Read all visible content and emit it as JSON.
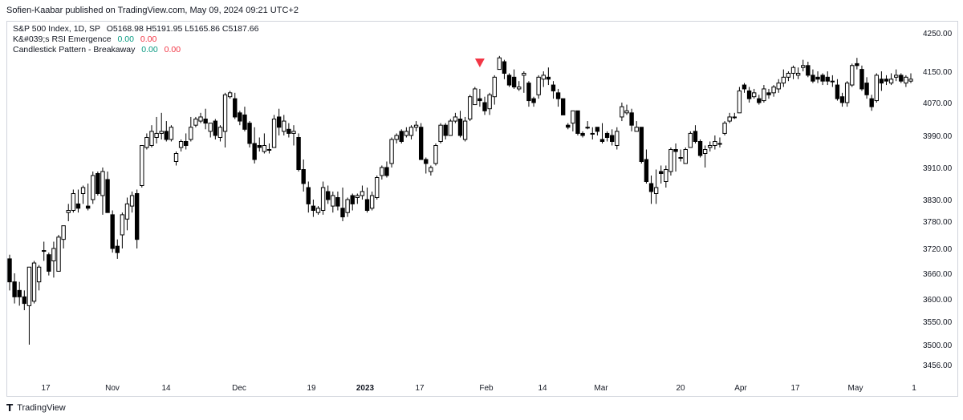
{
  "header": {
    "published": "Sofien-Kaabar published on TradingView.com, May 09, 2024 09:21 UTC+2"
  },
  "legend": {
    "rows": [
      {
        "name": "S&P 500 Index, 1D, SP",
        "values": "O5168.98  H5191.95  L5165.86  C5187.66"
      },
      {
        "name": "K&#039;s RSI Emergence",
        "v1": "0.00",
        "v2": "0.00"
      },
      {
        "name": "Candlestick Pattern - Breakaway",
        "v1": "0.00",
        "v2": "0.00"
      }
    ]
  },
  "footer": {
    "logo_icon": "tradingview-logo-icon",
    "brand": "TradingView"
  },
  "colors": {
    "up_fill": "#ffffff",
    "down_fill": "#000000",
    "wick": "#000000",
    "signal": "#f23645",
    "grid": "#d1d4dc"
  },
  "chart_data": {
    "type": "candlestick",
    "title": "S&P 500 Index, 1D, SP",
    "ylim": [
      3420,
      4280
    ],
    "y_ticks": [
      "4250.00",
      "4150.00",
      "4070.00",
      "3990.00",
      "3910.00",
      "3830.00",
      "3780.00",
      "3720.00",
      "3660.00",
      "3600.00",
      "3550.00",
      "3500.00",
      "3456.00"
    ],
    "x_ticks": [
      "17",
      "Nov",
      "14",
      "Dec",
      "19",
      "2023",
      "17",
      "Feb",
      "14",
      "Mar",
      "20",
      "Apr",
      "17",
      "May",
      "1"
    ],
    "ohlc": [
      [
        3695,
        3705,
        3620,
        3640
      ],
      [
        3640,
        3660,
        3590,
        3605
      ],
      [
        3620,
        3640,
        3585,
        3605
      ],
      [
        3605,
        3620,
        3575,
        3590
      ],
      [
        3585,
        3675,
        3500,
        3675
      ],
      [
        3595,
        3690,
        3590,
        3685
      ],
      [
        3640,
        3680,
        3620,
        3675
      ],
      [
        3715,
        3735,
        3690,
        3715
      ],
      [
        3705,
        3710,
        3655,
        3665
      ],
      [
        3690,
        3735,
        3650,
        3720
      ],
      [
        3665,
        3750,
        3665,
        3745
      ],
      [
        3740,
        3770,
        3720,
        3770
      ],
      [
        3800,
        3820,
        3780,
        3805
      ],
      [
        3805,
        3855,
        3800,
        3845
      ],
      [
        3820,
        3855,
        3800,
        3810
      ],
      [
        3845,
        3865,
        3820,
        3860
      ],
      [
        3815,
        3870,
        3805,
        3810
      ],
      [
        3830,
        3900,
        3820,
        3890
      ],
      [
        3895,
        3900,
        3840,
        3845
      ],
      [
        3840,
        3910,
        3795,
        3900
      ],
      [
        3880,
        3900,
        3800,
        3800
      ],
      [
        3795,
        3805,
        3710,
        3720
      ],
      [
        3725,
        3740,
        3695,
        3710
      ],
      [
        3750,
        3800,
        3720,
        3795
      ],
      [
        3785,
        3835,
        3760,
        3820
      ],
      [
        3815,
        3850,
        3800,
        3840
      ],
      [
        3845,
        3855,
        3720,
        3740
      ],
      [
        3865,
        3965,
        3860,
        3965
      ],
      [
        3960,
        3995,
        3955,
        3985
      ],
      [
        3965,
        4015,
        3960,
        4000
      ],
      [
        3985,
        4035,
        3970,
        3995
      ],
      [
        3995,
        4045,
        3980,
        4000
      ],
      [
        4000,
        4025,
        3975,
        3980
      ],
      [
        3980,
        4015,
        3975,
        4010
      ],
      [
        3925,
        3950,
        3915,
        3945
      ],
      [
        3960,
        3980,
        3950,
        3975
      ],
      [
        3975,
        3995,
        3955,
        3965
      ],
      [
        3980,
        4035,
        3975,
        4010
      ],
      [
        4015,
        4035,
        4010,
        4030
      ],
      [
        4025,
        4045,
        4020,
        4035
      ],
      [
        4030,
        4055,
        4005,
        4020
      ],
      [
        4000,
        4020,
        3985,
        4020
      ],
      [
        4025,
        4030,
        3980,
        3990
      ],
      [
        3985,
        4015,
        3975,
        4010
      ],
      [
        4000,
        4095,
        3960,
        4090
      ],
      [
        4085,
        4100,
        4080,
        4095
      ],
      [
        4080,
        4095,
        4030,
        4035
      ],
      [
        4045,
        4050,
        4015,
        4025
      ],
      [
        4040,
        4060,
        4000,
        4005
      ],
      [
        4020,
        4025,
        3960,
        3970
      ],
      [
        3970,
        4010,
        3920,
        3930
      ],
      [
        3965,
        3985,
        3950,
        3960
      ],
      [
        3950,
        3995,
        3945,
        3965
      ],
      [
        3955,
        3970,
        3945,
        3955
      ],
      [
        3960,
        4040,
        3960,
        4030
      ],
      [
        4035,
        4055,
        3990,
        4010
      ],
      [
        4000,
        4040,
        3990,
        4025
      ],
      [
        4005,
        4020,
        3985,
        3995
      ],
      [
        3995,
        4015,
        3965,
        4000
      ],
      [
        3985,
        3995,
        3900,
        3905
      ],
      [
        3905,
        3930,
        3850,
        3870
      ],
      [
        3860,
        3875,
        3800,
        3820
      ],
      [
        3815,
        3830,
        3790,
        3805
      ],
      [
        3800,
        3815,
        3795,
        3810
      ],
      [
        3805,
        3875,
        3795,
        3860
      ],
      [
        3850,
        3865,
        3820,
        3830
      ],
      [
        3815,
        3850,
        3800,
        3840
      ],
      [
        3835,
        3850,
        3805,
        3815
      ],
      [
        3810,
        3860,
        3780,
        3790
      ],
      [
        3800,
        3835,
        3790,
        3830
      ],
      [
        3840,
        3845,
        3805,
        3820
      ],
      [
        3835,
        3845,
        3820,
        3840
      ],
      [
        3840,
        3865,
        3830,
        3850
      ],
      [
        3830,
        3860,
        3800,
        3805
      ],
      [
        3810,
        3850,
        3805,
        3840
      ],
      [
        3835,
        3890,
        3830,
        3885
      ],
      [
        3890,
        3915,
        3880,
        3910
      ],
      [
        3910,
        3925,
        3885,
        3890
      ],
      [
        3920,
        3985,
        3910,
        3980
      ],
      [
        3980,
        3995,
        3970,
        3990
      ],
      [
        4000,
        4005,
        3970,
        3975
      ],
      [
        3990,
        4010,
        3985,
        4000
      ],
      [
        3990,
        4015,
        3980,
        4010
      ],
      [
        4010,
        4025,
        4000,
        4015
      ],
      [
        4010,
        4020,
        3930,
        3930
      ],
      [
        3930,
        3935,
        3895,
        3920
      ],
      [
        3900,
        3915,
        3890,
        3910
      ],
      [
        3920,
        3970,
        3915,
        3965
      ],
      [
        3975,
        4020,
        3970,
        4015
      ],
      [
        4015,
        4020,
        3980,
        3990
      ],
      [
        3990,
        4030,
        3990,
        4025
      ],
      [
        4025,
        4045,
        4020,
        4035
      ],
      [
        4030,
        4050,
        3985,
        3990
      ],
      [
        3980,
        4035,
        3975,
        4025
      ],
      [
        4030,
        4090,
        4025,
        4085
      ],
      [
        4065,
        4110,
        4065,
        4105
      ],
      [
        4080,
        4105,
        4060,
        4075
      ],
      [
        4070,
        4085,
        4040,
        4050
      ],
      [
        4055,
        4095,
        4040,
        4090
      ],
      [
        4085,
        4140,
        4065,
        4135
      ],
      [
        4155,
        4190,
        4155,
        4185
      ],
      [
        4175,
        4180,
        4130,
        4145
      ],
      [
        4140,
        4145,
        4110,
        4115
      ],
      [
        4135,
        4155,
        4105,
        4110
      ],
      [
        4105,
        4125,
        4100,
        4110
      ],
      [
        4140,
        4150,
        4095,
        4145
      ],
      [
        4120,
        4125,
        4060,
        4075
      ],
      [
        4080,
        4085,
        4060,
        4070
      ],
      [
        4090,
        4140,
        4080,
        4135
      ],
      [
        4130,
        4150,
        4110,
        4140
      ],
      [
        4135,
        4160,
        4115,
        4130
      ],
      [
        4115,
        4125,
        4080,
        4100
      ],
      [
        4095,
        4105,
        4060,
        4080
      ],
      [
        4080,
        4080,
        4040,
        4040
      ],
      [
        4015,
        4020,
        4005,
        4010
      ],
      [
        4020,
        4050,
        4000,
        4050
      ],
      [
        4050,
        4050,
        3990,
        3995
      ],
      [
        3995,
        4000,
        3985,
        3990
      ],
      [
        4010,
        4025,
        4005,
        4010
      ],
      [
        3995,
        4010,
        3980,
        3995
      ],
      [
        4010,
        4010,
        3990,
        4000
      ],
      [
        3980,
        4020,
        3970,
        3975
      ],
      [
        3995,
        4000,
        3975,
        3985
      ],
      [
        3990,
        4005,
        3965,
        3975
      ],
      [
        3965,
        4010,
        3955,
        4000
      ],
      [
        4035,
        4070,
        4025,
        4060
      ],
      [
        4045,
        4065,
        4040,
        4050
      ],
      [
        4045,
        4055,
        4000,
        4015
      ],
      [
        4000,
        4025,
        4000,
        4010
      ],
      [
        4010,
        4010,
        3920,
        3925
      ],
      [
        3930,
        3955,
        3870,
        3875
      ],
      [
        3870,
        3890,
        3820,
        3850
      ],
      [
        3845,
        3905,
        3820,
        3860
      ],
      [
        3900,
        3915,
        3870,
        3895
      ],
      [
        3875,
        3915,
        3860,
        3905
      ],
      [
        3900,
        3960,
        3890,
        3955
      ],
      [
        3955,
        3970,
        3900,
        3950
      ],
      [
        3935,
        3955,
        3925,
        3935
      ],
      [
        3920,
        3960,
        3920,
        3955
      ],
      [
        3960,
        4000,
        3960,
        3995
      ],
      [
        4000,
        4015,
        3970,
        3975
      ],
      [
        3975,
        3980,
        3935,
        3940
      ],
      [
        3945,
        3965,
        3910,
        3955
      ],
      [
        3960,
        3975,
        3950,
        3965
      ],
      [
        3965,
        3990,
        3955,
        3975
      ],
      [
        3970,
        3985,
        3960,
        3970
      ],
      [
        3995,
        4025,
        3990,
        4020
      ],
      [
        4025,
        4045,
        4020,
        4035
      ],
      [
        4035,
        4045,
        4030,
        4035
      ],
      [
        4045,
        4110,
        4045,
        4100
      ],
      [
        4115,
        4120,
        4095,
        4105
      ],
      [
        4100,
        4110,
        4070,
        4080
      ],
      [
        4085,
        4105,
        4080,
        4095
      ],
      [
        4080,
        4090,
        4065,
        4070
      ],
      [
        4075,
        4115,
        4070,
        4105
      ],
      [
        4095,
        4105,
        4080,
        4090
      ],
      [
        4095,
        4115,
        4085,
        4110
      ],
      [
        4105,
        4130,
        4095,
        4120
      ],
      [
        4120,
        4155,
        4110,
        4135
      ],
      [
        4135,
        4150,
        4125,
        4145
      ],
      [
        4145,
        4165,
        4130,
        4160
      ],
      [
        4140,
        4160,
        4130,
        4145
      ],
      [
        4160,
        4180,
        4150,
        4165
      ],
      [
        4165,
        4175,
        4135,
        4140
      ],
      [
        4140,
        4155,
        4120,
        4125
      ],
      [
        4135,
        4150,
        4120,
        4130
      ],
      [
        4140,
        4145,
        4115,
        4125
      ],
      [
        4135,
        4150,
        4115,
        4125
      ],
      [
        4125,
        4140,
        4110,
        4125
      ],
      [
        4115,
        4130,
        4075,
        4080
      ],
      [
        4085,
        4095,
        4060,
        4070
      ],
      [
        4070,
        4125,
        4060,
        4120
      ],
      [
        4115,
        4170,
        4110,
        4165
      ],
      [
        4170,
        4185,
        4155,
        4165
      ],
      [
        4155,
        4165,
        4100,
        4105
      ],
      [
        4120,
        4135,
        4080,
        4090
      ],
      [
        4080,
        4090,
        4050,
        4060
      ],
      [
        4075,
        4145,
        4070,
        4140
      ],
      [
        4130,
        4150,
        4100,
        4120
      ],
      [
        4130,
        4140,
        4115,
        4125
      ],
      [
        4120,
        4145,
        4115,
        4130
      ],
      [
        4135,
        4155,
        4125,
        4140
      ],
      [
        4140,
        4145,
        4120,
        4125
      ],
      [
        4120,
        4140,
        4110,
        4135
      ],
      [
        4125,
        4145,
        4120,
        4130
      ]
    ],
    "signals": [
      {
        "bar": 96,
        "marker": "triangle-down"
      }
    ]
  }
}
